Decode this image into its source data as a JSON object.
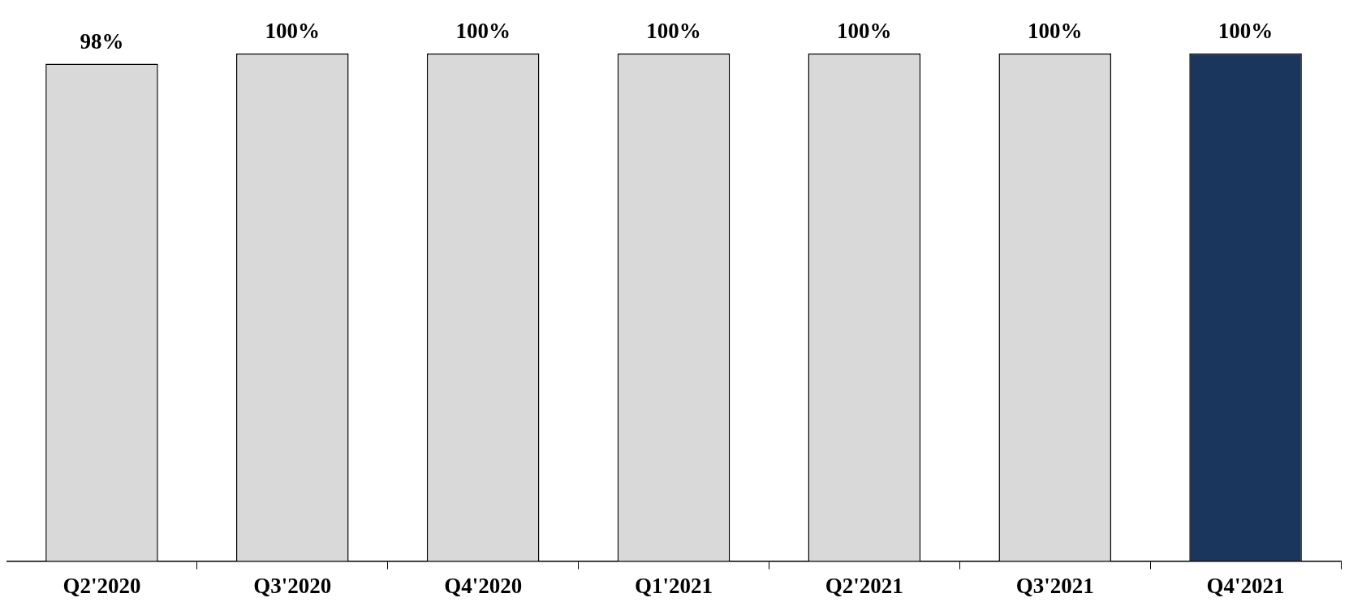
{
  "chart_data": {
    "type": "bar",
    "categories": [
      "Q2'2020",
      "Q3'2020",
      "Q4'2020",
      "Q1'2021",
      "Q2'2021",
      "Q3'2021",
      "Q4'2021"
    ],
    "values": [
      98,
      100,
      100,
      100,
      100,
      100,
      100
    ],
    "colors": [
      "#d9d9d9",
      "#d9d9d9",
      "#d9d9d9",
      "#d9d9d9",
      "#d9d9d9",
      "#d9d9d9",
      "#1b365d"
    ],
    "value_labels": [
      "98%",
      "100%",
      "100%",
      "100%",
      "100%",
      "100%",
      "100%"
    ],
    "tick_labels": "x"
  }
}
